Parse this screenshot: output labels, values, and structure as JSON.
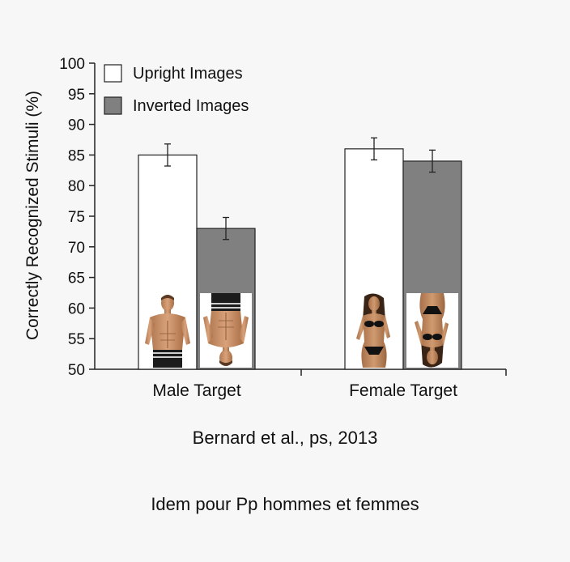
{
  "chart_data": {
    "type": "bar",
    "title": "",
    "ylabel": "Correctly Recognized Stimuli (%)",
    "xlabel": "",
    "ylim": [
      50,
      100
    ],
    "yticks": [
      50,
      55,
      60,
      65,
      70,
      75,
      80,
      85,
      90,
      95,
      100
    ],
    "grid": false,
    "legend_position": "top-left",
    "categories": [
      "Male Target",
      "Female Target"
    ],
    "series": [
      {
        "name": "Upright Images",
        "color": "#ffffff",
        "values": [
          85,
          86
        ],
        "errors": [
          1.8,
          1.8
        ]
      },
      {
        "name": "Inverted Images",
        "color": "#808080",
        "values": [
          73,
          84
        ],
        "errors": [
          1.8,
          1.8
        ]
      }
    ],
    "inset_images": [
      {
        "category": "Male Target",
        "series": "Upright Images",
        "icon": "male-upright-photo-icon"
      },
      {
        "category": "Male Target",
        "series": "Inverted Images",
        "icon": "male-inverted-photo-icon"
      },
      {
        "category": "Female Target",
        "series": "Upright Images",
        "icon": "female-upright-photo-icon"
      },
      {
        "category": "Female Target",
        "series": "Inverted Images",
        "icon": "female-inverted-photo-icon"
      }
    ]
  },
  "captions": {
    "citation": "Bernard et al., ps, 2013",
    "note": "Idem pour Pp hommes et femmes"
  }
}
